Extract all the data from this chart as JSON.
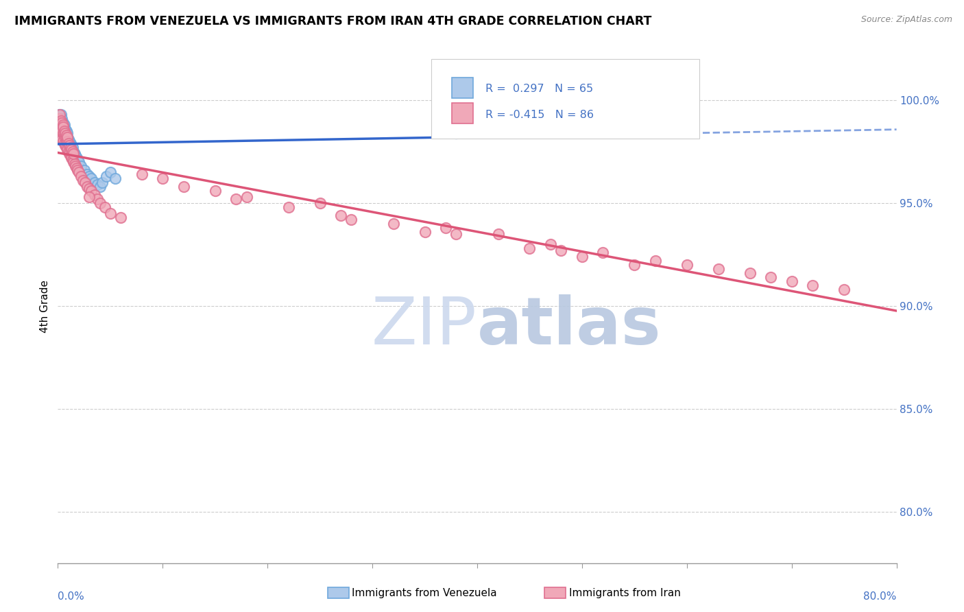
{
  "title": "IMMIGRANTS FROM VENEZUELA VS IMMIGRANTS FROM IRAN 4TH GRADE CORRELATION CHART",
  "source": "Source: ZipAtlas.com",
  "ylabel": "4th Grade",
  "y_tick_labels": [
    "100.0%",
    "95.0%",
    "90.0%",
    "85.0%",
    "80.0%"
  ],
  "y_tick_values": [
    1.0,
    0.95,
    0.9,
    0.85,
    0.8
  ],
  "x_range": [
    0.0,
    0.8
  ],
  "y_range": [
    0.775,
    1.025
  ],
  "color_venezuela": "#6fa8dc",
  "color_venezuela_fill": "#adc9ea",
  "color_iran": "#e07090",
  "color_iran_fill": "#f0a8b8",
  "color_trendline_venezuela": "#3366cc",
  "color_trendline_iran": "#dd5577",
  "watermark_zip": "#ccd9ee",
  "watermark_atlas": "#b8c8e0",
  "venezuela_x": [
    0.001,
    0.001,
    0.001,
    0.002,
    0.002,
    0.002,
    0.002,
    0.003,
    0.003,
    0.003,
    0.003,
    0.003,
    0.004,
    0.004,
    0.004,
    0.004,
    0.005,
    0.005,
    0.005,
    0.005,
    0.006,
    0.006,
    0.006,
    0.006,
    0.007,
    0.007,
    0.007,
    0.008,
    0.008,
    0.008,
    0.009,
    0.009,
    0.009,
    0.01,
    0.01,
    0.011,
    0.011,
    0.012,
    0.012,
    0.013,
    0.013,
    0.014,
    0.015,
    0.016,
    0.017,
    0.018,
    0.019,
    0.02,
    0.022,
    0.025,
    0.028,
    0.03,
    0.032,
    0.035,
    0.038,
    0.04,
    0.042,
    0.046,
    0.05,
    0.055,
    0.38,
    0.41,
    0.44,
    0.47,
    0.49
  ],
  "venezuela_y": [
    0.99,
    0.993,
    0.987,
    0.989,
    0.992,
    0.985,
    0.991,
    0.988,
    0.984,
    0.99,
    0.993,
    0.986,
    0.987,
    0.983,
    0.991,
    0.985,
    0.986,
    0.982,
    0.989,
    0.984,
    0.985,
    0.981,
    0.988,
    0.983,
    0.984,
    0.98,
    0.986,
    0.983,
    0.979,
    0.985,
    0.982,
    0.978,
    0.984,
    0.981,
    0.977,
    0.98,
    0.976,
    0.979,
    0.975,
    0.978,
    0.974,
    0.977,
    0.975,
    0.974,
    0.973,
    0.972,
    0.971,
    0.97,
    0.968,
    0.966,
    0.964,
    0.963,
    0.962,
    0.96,
    0.959,
    0.958,
    0.96,
    0.963,
    0.965,
    0.962,
    0.984,
    0.986,
    0.988,
    0.985,
    0.987
  ],
  "iran_x": [
    0.001,
    0.001,
    0.002,
    0.002,
    0.002,
    0.003,
    0.003,
    0.003,
    0.004,
    0.004,
    0.004,
    0.005,
    0.005,
    0.005,
    0.005,
    0.006,
    0.006,
    0.006,
    0.007,
    0.007,
    0.007,
    0.008,
    0.008,
    0.008,
    0.009,
    0.009,
    0.009,
    0.01,
    0.01,
    0.011,
    0.011,
    0.012,
    0.012,
    0.013,
    0.013,
    0.014,
    0.014,
    0.015,
    0.015,
    0.016,
    0.017,
    0.018,
    0.019,
    0.02,
    0.022,
    0.024,
    0.026,
    0.028,
    0.03,
    0.032,
    0.035,
    0.038,
    0.04,
    0.045,
    0.05,
    0.06,
    0.12,
    0.17,
    0.22,
    0.27,
    0.32,
    0.37,
    0.42,
    0.47,
    0.52,
    0.57,
    0.6,
    0.63,
    0.66,
    0.68,
    0.7,
    0.72,
    0.75,
    0.03,
    0.15,
    0.25,
    0.1,
    0.08,
    0.18,
    0.38,
    0.5,
    0.55,
    0.45,
    0.35,
    0.28,
    0.48
  ],
  "iran_y": [
    0.991,
    0.987,
    0.993,
    0.989,
    0.985,
    0.99,
    0.986,
    0.982,
    0.989,
    0.985,
    0.981,
    0.988,
    0.984,
    0.98,
    0.987,
    0.983,
    0.979,
    0.985,
    0.982,
    0.978,
    0.984,
    0.981,
    0.977,
    0.983,
    0.98,
    0.976,
    0.982,
    0.975,
    0.979,
    0.974,
    0.978,
    0.973,
    0.977,
    0.972,
    0.976,
    0.971,
    0.975,
    0.97,
    0.974,
    0.969,
    0.968,
    0.967,
    0.966,
    0.965,
    0.963,
    0.961,
    0.96,
    0.958,
    0.957,
    0.956,
    0.954,
    0.952,
    0.95,
    0.948,
    0.945,
    0.943,
    0.958,
    0.952,
    0.948,
    0.944,
    0.94,
    0.938,
    0.935,
    0.93,
    0.926,
    0.922,
    0.92,
    0.918,
    0.916,
    0.914,
    0.912,
    0.91,
    0.908,
    0.953,
    0.956,
    0.95,
    0.962,
    0.964,
    0.953,
    0.935,
    0.924,
    0.92,
    0.928,
    0.936,
    0.942,
    0.927
  ],
  "legend_text1": "R =  0.297   N = 65",
  "legend_text2": "R = -0.415   N = 86",
  "bottom_legend_left": "Immigrants from Venezuela",
  "bottom_legend_right": "Immigrants from Iran"
}
